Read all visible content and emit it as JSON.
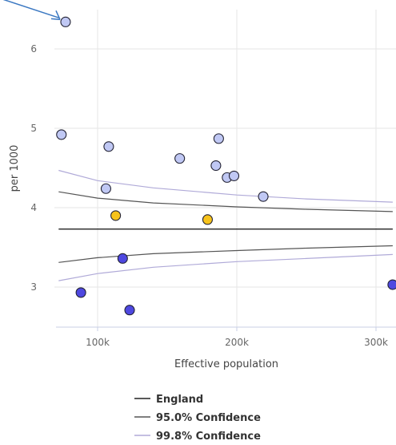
{
  "chart_data": {
    "type": "scatter",
    "xlabel": "Effective population",
    "ylabel": "per 1000",
    "xlim": [
      65000,
      315000
    ],
    "ylim": [
      2.5,
      6.5
    ],
    "x_ticks": [
      {
        "value": 100000,
        "label": "100k"
      },
      {
        "value": 200000,
        "label": "200k"
      },
      {
        "value": 300000,
        "label": "300k"
      }
    ],
    "y_ticks": [
      {
        "value": 3,
        "label": "3"
      },
      {
        "value": 4,
        "label": "4"
      },
      {
        "value": 5,
        "label": "5"
      },
      {
        "value": 6,
        "label": "6"
      }
    ],
    "grid": true,
    "legend_position": "bottom",
    "series_styles": {
      "England": {
        "color": "#222222"
      },
      "95.0% Confidence": {
        "color": "#555555"
      },
      "99.8% Confidence": {
        "color": "#b0aad8"
      }
    },
    "lines": [
      {
        "name": "England",
        "points": [
          [
            72000,
            3.73
          ],
          [
            312000,
            3.73
          ]
        ]
      },
      {
        "name": "95.0% Confidence",
        "points": [
          [
            72000,
            4.2
          ],
          [
            100000,
            4.12
          ],
          [
            140000,
            4.06
          ],
          [
            200000,
            4.01
          ],
          [
            250000,
            3.98
          ],
          [
            312000,
            3.95
          ]
        ]
      },
      {
        "name": "95.0% Confidence",
        "points": [
          [
            72000,
            3.31
          ],
          [
            100000,
            3.37
          ],
          [
            140000,
            3.42
          ],
          [
            200000,
            3.46
          ],
          [
            250000,
            3.49
          ],
          [
            312000,
            3.52
          ]
        ]
      },
      {
        "name": "99.8% Confidence",
        "points": [
          [
            72000,
            4.47
          ],
          [
            100000,
            4.34
          ],
          [
            140000,
            4.25
          ],
          [
            200000,
            4.16
          ],
          [
            250000,
            4.11
          ],
          [
            312000,
            4.07
          ]
        ]
      },
      {
        "name": "99.8% Confidence",
        "points": [
          [
            72000,
            3.08
          ],
          [
            100000,
            3.17
          ],
          [
            140000,
            3.25
          ],
          [
            200000,
            3.32
          ],
          [
            250000,
            3.36
          ],
          [
            312000,
            3.41
          ]
        ]
      }
    ],
    "categories": [
      {
        "key": "higher",
        "color": "#c0c8f4"
      },
      {
        "key": "similar",
        "color": "#f7c31b"
      },
      {
        "key": "lower",
        "color": "#4e48e0"
      }
    ],
    "points": [
      {
        "x": 77000,
        "y": 6.34,
        "category": "higher"
      },
      {
        "x": 74000,
        "y": 4.92,
        "category": "higher"
      },
      {
        "x": 108000,
        "y": 4.77,
        "category": "higher"
      },
      {
        "x": 106000,
        "y": 4.24,
        "category": "higher"
      },
      {
        "x": 159000,
        "y": 4.62,
        "category": "higher"
      },
      {
        "x": 187000,
        "y": 4.87,
        "category": "higher"
      },
      {
        "x": 185000,
        "y": 4.53,
        "category": "higher"
      },
      {
        "x": 193000,
        "y": 4.38,
        "category": "higher"
      },
      {
        "x": 198000,
        "y": 4.4,
        "category": "higher"
      },
      {
        "x": 219000,
        "y": 4.14,
        "category": "higher"
      },
      {
        "x": 113000,
        "y": 3.9,
        "category": "similar"
      },
      {
        "x": 179000,
        "y": 3.85,
        "category": "similar"
      },
      {
        "x": 118000,
        "y": 3.36,
        "category": "lower"
      },
      {
        "x": 88000,
        "y": 2.93,
        "category": "lower"
      },
      {
        "x": 123000,
        "y": 2.71,
        "category": "lower"
      },
      {
        "x": 312000,
        "y": 3.03,
        "category": "lower"
      }
    ],
    "highlight": {
      "x": 77000,
      "y": 6.34,
      "arrow_color": "#3b78c2"
    },
    "legend": [
      {
        "label": "England",
        "color": "#222222"
      },
      {
        "label": "95.0% Confidence",
        "color": "#555555"
      },
      {
        "label": "99.8% Confidence",
        "color": "#b0aad8"
      }
    ]
  }
}
